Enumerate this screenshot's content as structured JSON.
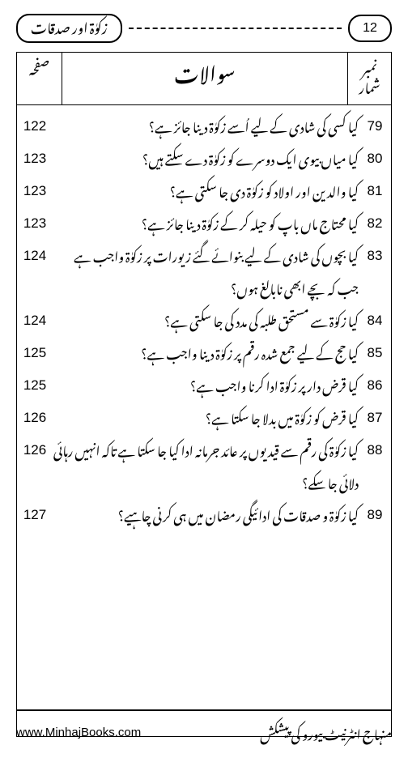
{
  "header": {
    "section_title": "زکوٰۃ اور صدقات",
    "page_number": "12"
  },
  "columns": {
    "serial": "نمبر شمار",
    "question": "سوالات",
    "page": "صفحہ"
  },
  "rows": [
    {
      "n": "79",
      "q": "کیا کسی کی شادی کے لیے اُسے زکوٰۃ دینا جائز ہے؟",
      "p": "122"
    },
    {
      "n": "80",
      "q": "کیا میاں بیوی ایک دوسرے کو زکوٰۃ دے سکتے ہیں؟",
      "p": "123"
    },
    {
      "n": "81",
      "q": "کیا والدین اور اولاد کو زکوٰۃ دی جا سکتی ہے؟",
      "p": "123"
    },
    {
      "n": "82",
      "q": "کیا محتاج ماں باپ کو حیلہ کر کے زکوٰۃ دینا جائز ہے؟",
      "p": "123"
    },
    {
      "n": "83",
      "q": "کیا بچوں کی شادی کے لیے بنوائے گئے زیورات پر زکوٰۃ واجب ہے جب کہ بچے ابھی نابالغ ہوں؟",
      "p": "124"
    },
    {
      "n": "84",
      "q": "کیا زکوٰۃ سے مستحق طلبہ کی مدد کی جا سکتی ہے؟",
      "p": "124"
    },
    {
      "n": "85",
      "q": "کیا حج کے لیے جمع شدہ رقم پر زکوٰۃ دینا واجب ہے؟",
      "p": "125"
    },
    {
      "n": "86",
      "q": "کیا قرض دار پر زکوٰۃ ادا کرنا واجب ہے؟",
      "p": "125"
    },
    {
      "n": "87",
      "q": "کیا قرض کو زکوٰۃ میں بدلا جا سکتا ہے؟",
      "p": "126"
    },
    {
      "n": "88",
      "q": "کیا زکوٰۃ کی رقم سے قیدیوں پر عائد جرمانہ ادا کیا جا سکتا ہے تاکہ انہیں رہائی دلائی جا سکے؟",
      "p": "126"
    },
    {
      "n": "89",
      "q": "کیا زکوٰۃ و صدقات کی ادائیگی رمضان میں ہی کرنی چاہیے؟",
      "p": "127"
    }
  ],
  "footer": {
    "url": "www.MinhajBooks.com",
    "credit": "منہاج انٹرنیٹ بیورو کی پیشکش"
  }
}
